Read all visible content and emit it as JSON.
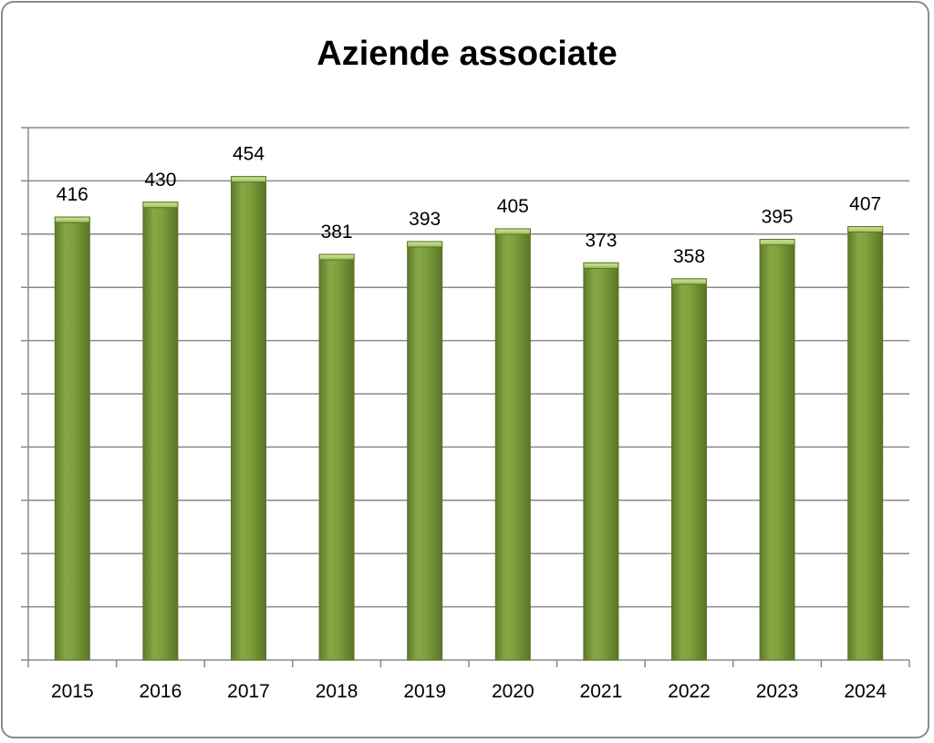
{
  "chart_data": {
    "type": "bar",
    "title": "Aziende associate",
    "xlabel": "",
    "ylabel": "",
    "categories": [
      "2015",
      "2016",
      "2017",
      "2018",
      "2019",
      "2020",
      "2021",
      "2022",
      "2023",
      "2024"
    ],
    "values": [
      416,
      430,
      454,
      381,
      393,
      405,
      373,
      358,
      395,
      407
    ],
    "ylim": [
      0,
      500
    ],
    "grid": true,
    "legend": "none",
    "bar_color": "#7a9a3c"
  }
}
